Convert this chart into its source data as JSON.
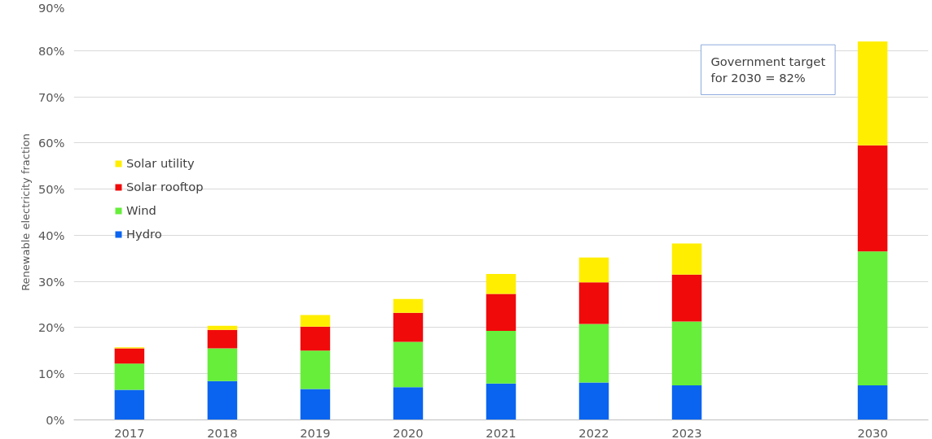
{
  "chart_data": {
    "type": "bar",
    "stacked": true,
    "ylabel": "Renewable electricity fraction",
    "categories": [
      "2017",
      "2018",
      "2019",
      "2020",
      "2021",
      "2022",
      "2023",
      null,
      "2030"
    ],
    "series": [
      {
        "name": "Hydro",
        "color": "#0a64f0",
        "values": [
          6.5,
          8.4,
          6.7,
          7.1,
          7.9,
          8.1,
          7.5,
          null,
          7.5
        ]
      },
      {
        "name": "Wind",
        "color": "#66ee3a",
        "values": [
          5.7,
          7.1,
          8.3,
          9.8,
          11.4,
          12.7,
          13.8,
          null,
          29
        ]
      },
      {
        "name": "Solar rooftop",
        "color": "#f00a0a",
        "values": [
          3.3,
          4,
          5.2,
          6.3,
          8,
          9,
          10.2,
          null,
          23
        ]
      },
      {
        "name": "Solar utility",
        "color": "#ffee00",
        "values": [
          0.2,
          0.9,
          2.5,
          3,
          4.3,
          5.4,
          6.7,
          null,
          22.5
        ]
      }
    ],
    "ylim": [
      0,
      90
    ],
    "yticks": [
      {
        "value": 0,
        "label": "0%"
      },
      {
        "value": 10,
        "label": "10%"
      },
      {
        "value": 20,
        "label": "20%"
      },
      {
        "value": 30,
        "label": "30%"
      },
      {
        "value": 40,
        "label": "40%"
      },
      {
        "value": 50,
        "label": "50%"
      },
      {
        "value": 60,
        "label": "60%"
      },
      {
        "value": 70,
        "label": "70%"
      },
      {
        "value": 80,
        "label": "80%"
      },
      {
        "value": 90,
        "label": "90%"
      }
    ],
    "grid": "y",
    "legend": "top left",
    "annotations": [
      "Government target\nfor 2030 = 82%"
    ]
  }
}
